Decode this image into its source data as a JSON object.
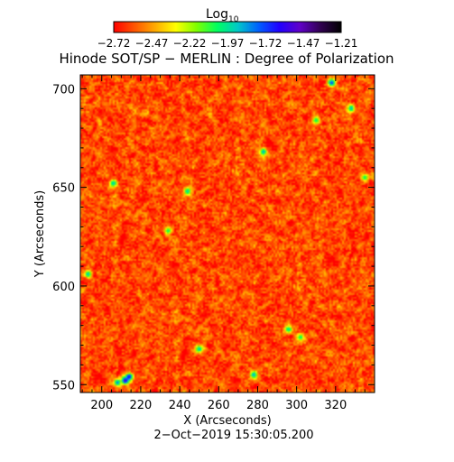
{
  "colorbar": {
    "label": "Log",
    "label_sub": "10",
    "range": [
      -2.72,
      -1.21
    ],
    "tick_labels": [
      "−2.72",
      "−2.47",
      "−2.22",
      "−1.97",
      "−1.72",
      "−1.47",
      "−1.21"
    ],
    "colors": [
      "#ff0000",
      "#ff5500",
      "#ffaa00",
      "#ffff00",
      "#7fff00",
      "#00ff60",
      "#00c8c8",
      "#0060ff",
      "#2000ff",
      "#6000c8",
      "#300050",
      "#000000"
    ]
  },
  "chart_data": {
    "type": "heatmap",
    "title": "Hinode SOT/SP − MERLIN : Degree of Polarization",
    "xlabel": "X (Arcseconds)",
    "ylabel": "Y (Arcseconds)",
    "xlim": [
      189,
      340
    ],
    "ylim": [
      546,
      707
    ],
    "x_ticks": [
      200,
      220,
      240,
      260,
      280,
      300,
      320
    ],
    "y_ticks": [
      550,
      600,
      650,
      700
    ],
    "value_scale": "log10",
    "value_range": [
      -2.72,
      -1.21
    ],
    "typical_value": -2.6,
    "features": [
      {
        "x": 212,
        "y": 552,
        "value": -1.5
      },
      {
        "x": 208,
        "y": 551,
        "value": -1.8
      },
      {
        "x": 244,
        "y": 648,
        "value": -1.9
      },
      {
        "x": 206,
        "y": 652,
        "value": -1.9
      },
      {
        "x": 250,
        "y": 568,
        "value": -1.9
      },
      {
        "x": 283,
        "y": 668,
        "value": -1.85
      },
      {
        "x": 296,
        "y": 578,
        "value": -1.95
      },
      {
        "x": 318,
        "y": 703,
        "value": -1.7
      },
      {
        "x": 328,
        "y": 690,
        "value": -1.9
      },
      {
        "x": 193,
        "y": 606,
        "value": -1.9
      },
      {
        "x": 214,
        "y": 554,
        "value": -1.6
      },
      {
        "x": 310,
        "y": 684,
        "value": -2.0
      },
      {
        "x": 302,
        "y": 574,
        "value": -2.0
      },
      {
        "x": 278,
        "y": 555,
        "value": -1.85
      },
      {
        "x": 234,
        "y": 628,
        "value": -2.0
      },
      {
        "x": 335,
        "y": 655,
        "value": -2.0
      }
    ]
  },
  "timestamp": "2−Oct−2019 15:30:05.200"
}
